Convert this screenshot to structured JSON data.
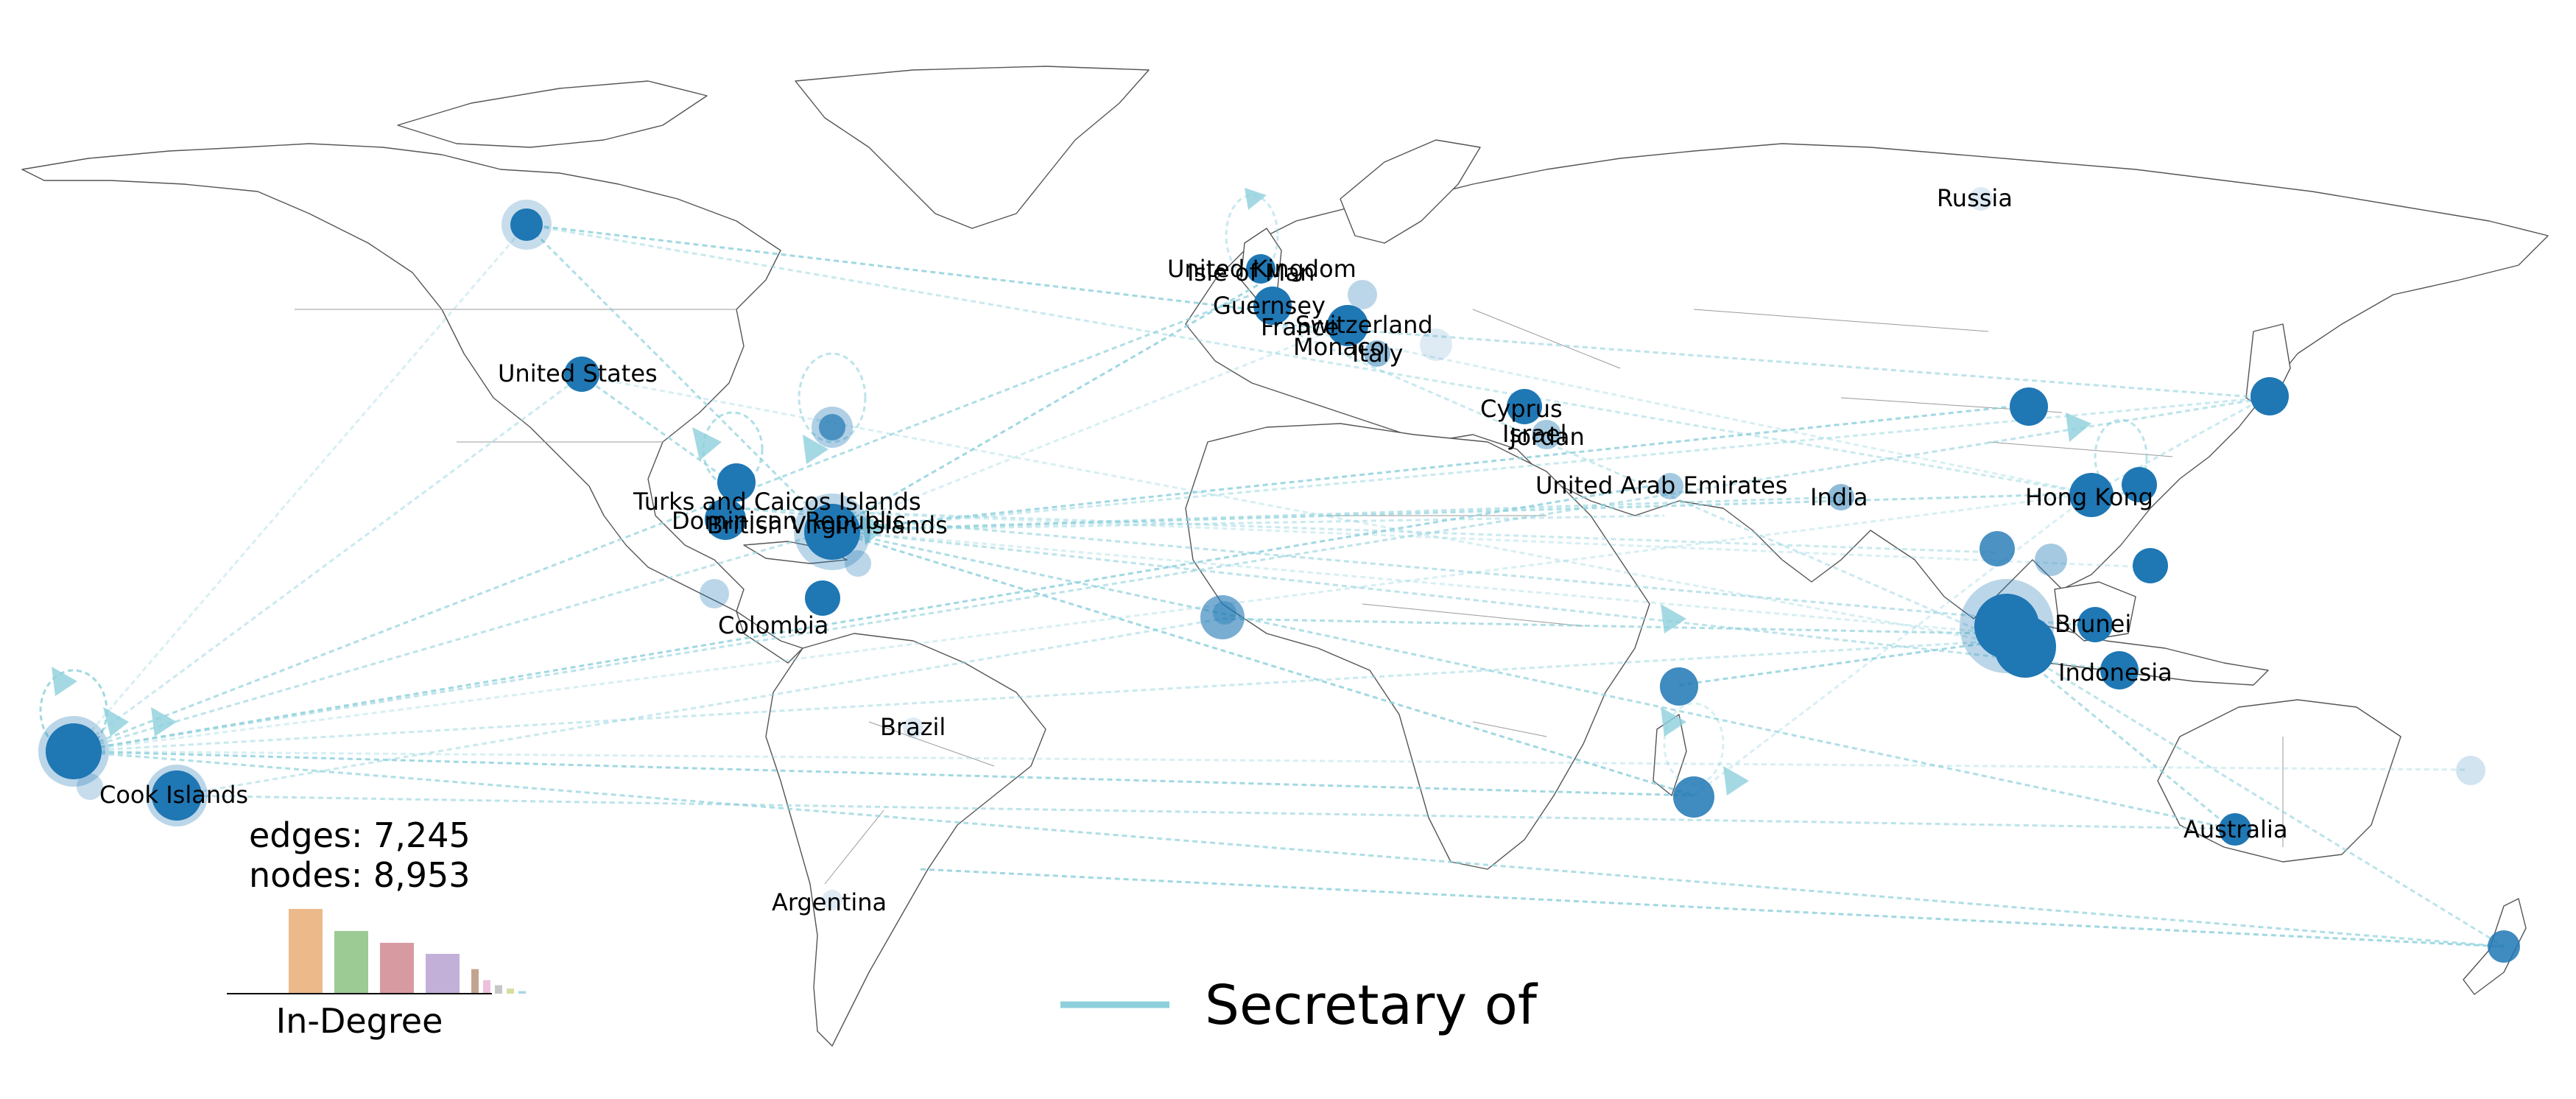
{
  "map": {
    "edge_color": "#8dd0dc",
    "node_color": "#1f77b4",
    "stats": {
      "edges": "edges: 7,245",
      "nodes": "nodes: 8,953"
    },
    "histogram": {
      "title": "In-Degree",
      "bars": [
        {
          "value": 1.0,
          "color": "#ebb98a"
        },
        {
          "value": 0.74,
          "color": "#9ccb94"
        },
        {
          "value": 0.6,
          "color": "#d89aa1"
        },
        {
          "value": 0.47,
          "color": "#c3b0d9"
        },
        {
          "value": 0.29,
          "color": "#c2a58f"
        },
        {
          "value": 0.16,
          "color": "#edc1dc"
        },
        {
          "value": 0.1,
          "color": "#c7c7c7"
        },
        {
          "value": 0.06,
          "color": "#d8dca0"
        },
        {
          "value": 0.03,
          "color": "#a7d7e3"
        }
      ]
    },
    "legend": {
      "label": "Secretary of",
      "color": "#8dd0dc"
    },
    "labels": [
      {
        "id": "united-kingdom",
        "text": "United Kingdom"
      },
      {
        "id": "isle-of-man",
        "text": "Isle of Man"
      },
      {
        "id": "guernsey",
        "text": "Guernsey"
      },
      {
        "id": "switzerland",
        "text": "Switzerland"
      },
      {
        "id": "france",
        "text": "France"
      },
      {
        "id": "monaco",
        "text": "Monaco"
      },
      {
        "id": "italy",
        "text": "Italy"
      },
      {
        "id": "russia",
        "text": "Russia"
      },
      {
        "id": "united-states",
        "text": "United States"
      },
      {
        "id": "cyprus",
        "text": "Cyprus"
      },
      {
        "id": "israel",
        "text": "Israel"
      },
      {
        "id": "jordan",
        "text": "Jordan"
      },
      {
        "id": "united-arab-emirates",
        "text": "United Arab Emirates"
      },
      {
        "id": "india",
        "text": "India"
      },
      {
        "id": "hong-kong",
        "text": "Hong Kong"
      },
      {
        "id": "turks-and-caicos-islands",
        "text": "Turks and Caicos Islands"
      },
      {
        "id": "dominican-republic",
        "text": "Dominican Republic"
      },
      {
        "id": "british-virgin-islands",
        "text": "British Virgin Islands"
      },
      {
        "id": "colombia",
        "text": "Colombia"
      },
      {
        "id": "brunei",
        "text": "Brunei"
      },
      {
        "id": "indonesia",
        "text": "Indonesia"
      },
      {
        "id": "brazil",
        "text": "Brazil"
      },
      {
        "id": "cook-islands",
        "text": "Cook Islands"
      },
      {
        "id": "australia",
        "text": "Australia"
      },
      {
        "id": "argentina",
        "text": "Argentina"
      }
    ]
  }
}
